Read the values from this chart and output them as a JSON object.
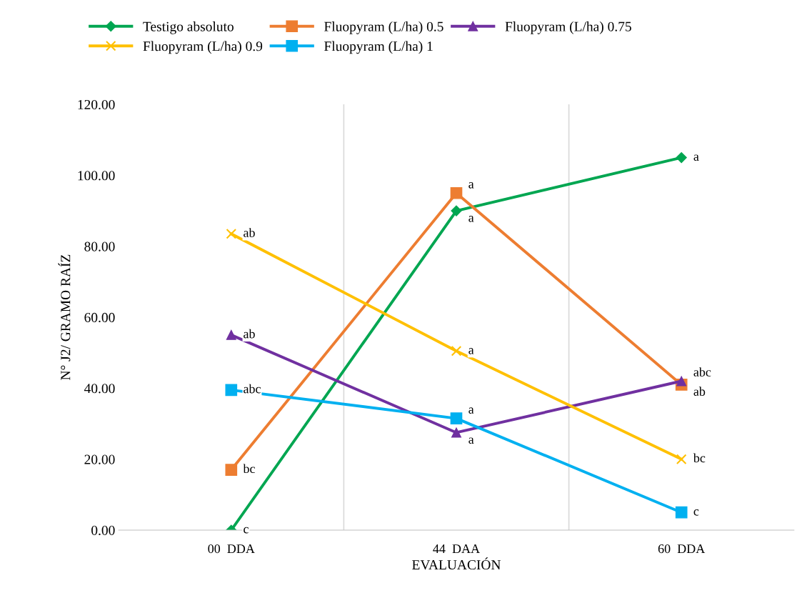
{
  "chart_data": {
    "type": "line",
    "xlabel": "EVALUACIÓN",
    "ylabel": "N° J2/ GRAMO RAÍZ",
    "categories": [
      "00  DDA",
      "44  DAA",
      "60  DDA"
    ],
    "series": [
      {
        "name": "Testigo absoluto",
        "color": "#00a651",
        "marker": "diamond",
        "values": [
          0,
          90,
          105
        ]
      },
      {
        "name": "Fluopyram (L/ha) 0.5",
        "color": "#ed7d31",
        "marker": "square",
        "values": [
          17,
          95,
          41
        ]
      },
      {
        "name": "Fluopyram (L/ha) 0.75",
        "color": "#7030a0",
        "marker": "triangle",
        "values": [
          55,
          27.5,
          42
        ]
      },
      {
        "name": "Fluopyram (L/ha) 0.9",
        "color": "#ffc000",
        "marker": "cross",
        "values": [
          83.5,
          50.5,
          20
        ]
      },
      {
        "name": "Fluopyram (L/ha) 1",
        "color": "#00b0f0",
        "marker": "square",
        "values": [
          39.5,
          31.5,
          5
        ]
      }
    ],
    "ylim": [
      0,
      120
    ],
    "yticks": [
      {
        "value": 0,
        "label": "0.00"
      },
      {
        "value": 20,
        "label": "20.00"
      },
      {
        "value": 40,
        "label": "40.00"
      },
      {
        "value": 60,
        "label": "60.00"
      },
      {
        "value": 80,
        "label": "80.00"
      },
      {
        "value": 100,
        "label": "100.00"
      },
      {
        "value": 120,
        "label": "120.00"
      }
    ],
    "grid": "x",
    "legend": "top",
    "line_style": "solid",
    "annotations": [
      {
        "text": "c",
        "x": "00  DDA",
        "y": 0
      },
      {
        "text": "bc",
        "x": "00  DDA",
        "y": 17
      },
      {
        "text": "abc",
        "x": "00  DDA",
        "y": 39.5
      },
      {
        "text": "ab",
        "x": "00  DDA",
        "y": 55
      },
      {
        "text": "ab",
        "x": "00  DDA",
        "y": 83.5
      },
      {
        "text": "a",
        "x": "44  DAA",
        "y": 95
      },
      {
        "text": "a",
        "x": "44  DAA",
        "y": 90
      },
      {
        "text": "a",
        "x": "44  DAA",
        "y": 50.5
      },
      {
        "text": "a",
        "x": "44  DAA",
        "y": 31.5
      },
      {
        "text": "a",
        "x": "44  DAA",
        "y": 27.5
      },
      {
        "text": "a",
        "x": "60  DDA",
        "y": 105
      },
      {
        "text": "abc",
        "x": "60  DDA",
        "y": 42
      },
      {
        "text": "ab",
        "x": "60  DDA",
        "y": 41
      },
      {
        "text": "bc",
        "x": "60  DDA",
        "y": 20
      },
      {
        "text": "c",
        "x": "60  DDA",
        "y": 5
      }
    ]
  }
}
